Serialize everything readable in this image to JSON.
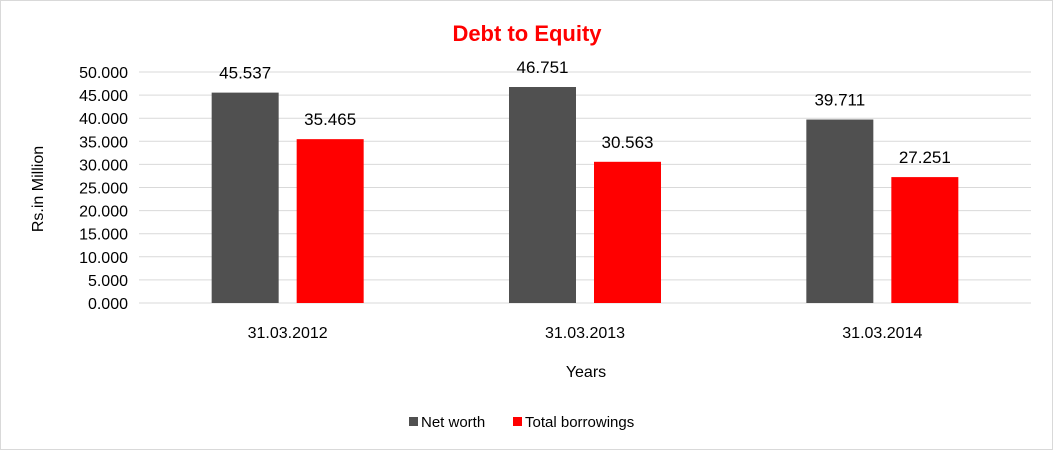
{
  "chart_data": {
    "type": "bar",
    "title": "Debt to Equity",
    "title_color": "#ff0000",
    "xlabel": "Years",
    "ylabel": "Rs.in Million",
    "categories": [
      "31.03.2012",
      "31.03.2013",
      "31.03.2014"
    ],
    "series": [
      {
        "name": "Net worth",
        "color": "#505050",
        "values": [
          45.537,
          46.751,
          39.711
        ],
        "labels": [
          "45.537",
          "46.751",
          "39.711"
        ]
      },
      {
        "name": "Total borrowings",
        "color": "#ff0000",
        "values": [
          35.465,
          30.563,
          27.251
        ],
        "labels": [
          "35.465",
          "30.563",
          "27.251"
        ]
      }
    ],
    "ylim": [
      0,
      50
    ],
    "yticks": [
      {
        "value": 0,
        "label": "0.000"
      },
      {
        "value": 5,
        "label": "5.000"
      },
      {
        "value": 10,
        "label": "10.000"
      },
      {
        "value": 15,
        "label": "15.000"
      },
      {
        "value": 20,
        "label": "20.000"
      },
      {
        "value": 25,
        "label": "25.000"
      },
      {
        "value": 30,
        "label": "30.000"
      },
      {
        "value": 35,
        "label": "35.000"
      },
      {
        "value": 40,
        "label": "40.000"
      },
      {
        "value": 45,
        "label": "45.000"
      },
      {
        "value": 50,
        "label": "50.000"
      }
    ],
    "grid": true,
    "legend_position": "bottom"
  }
}
